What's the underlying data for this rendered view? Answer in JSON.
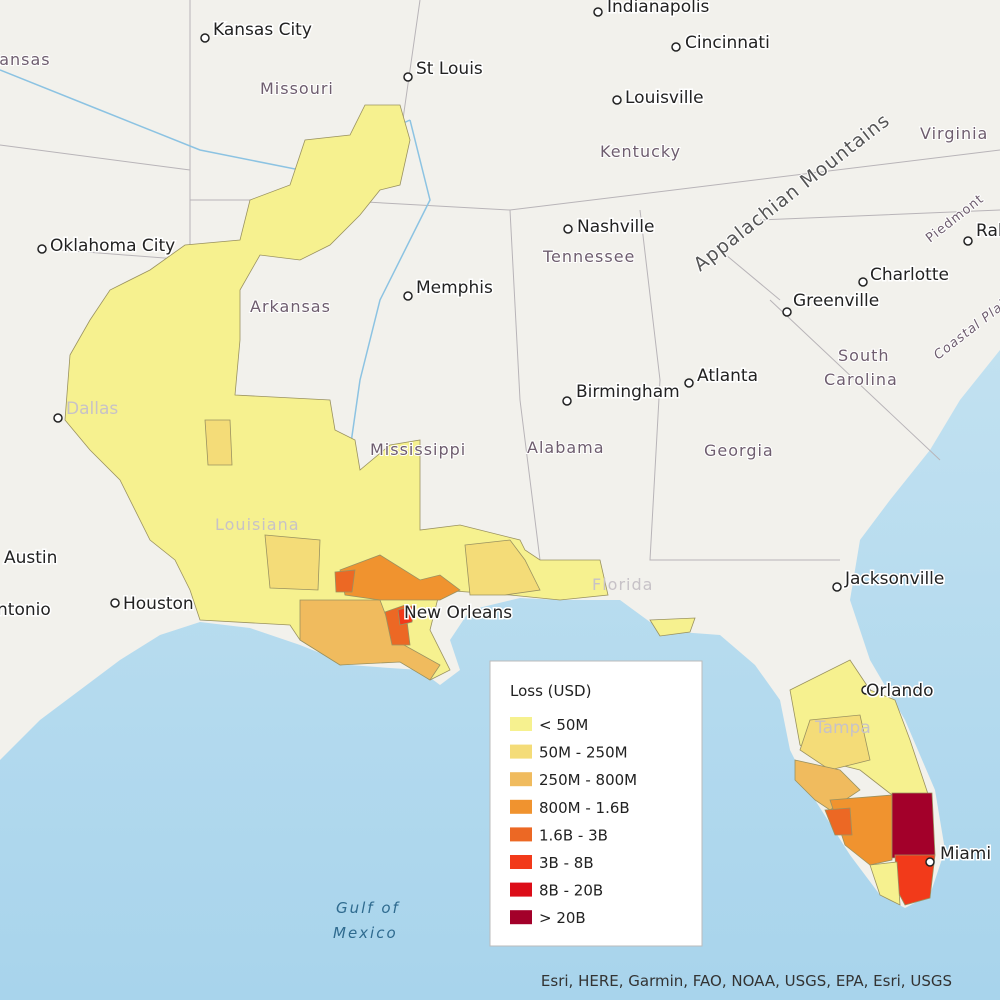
{
  "map": {
    "cities": [
      "Kansas City",
      "Indianapolis",
      "Cincinnati",
      "St Louis",
      "Louisville",
      "Nashville",
      "Oklahoma City",
      "Raleigh",
      "Charlotte",
      "Memphis",
      "Greenville",
      "Atlanta",
      "Birmingham",
      "Dallas",
      "Austin",
      "San Antonio",
      "Houston",
      "New Orleans",
      "Jacksonville",
      "Orlando",
      "Tampa",
      "Miami"
    ],
    "regions": [
      "Kansas",
      "Missouri",
      "Kentucky",
      "Virginia",
      "Tennessee",
      "Arkansas",
      "Mississippi",
      "Alabama",
      "Georgia",
      "South",
      "Carolina",
      "Louisiana",
      "Florida",
      "Appalachian Mountains",
      "Piedmont",
      "Coastal Plain"
    ],
    "water": [
      "Gulf of",
      "Mexico"
    ]
  },
  "legend": {
    "title": "Loss (USD)",
    "items": [
      {
        "label": "< 50M",
        "color": "#f6f18f"
      },
      {
        "label": "50M - 250M",
        "color": "#f4dc78"
      },
      {
        "label": "250M - 800M",
        "color": "#f0bb5e"
      },
      {
        "label": "800M - 1.6B",
        "color": "#f0932f"
      },
      {
        "label": "1.6B - 3B",
        "color": "#ec6824"
      },
      {
        "label": "3B - 8B",
        "color": "#f23a1a"
      },
      {
        "label": "8B - 20B",
        "color": "#dc0d18"
      },
      {
        "label": "> 20B",
        "color": "#a3002a"
      }
    ]
  },
  "attribution": "Esri, HERE, Garmin, FAO, NOAA, USGS, EPA, Esri, USGS"
}
